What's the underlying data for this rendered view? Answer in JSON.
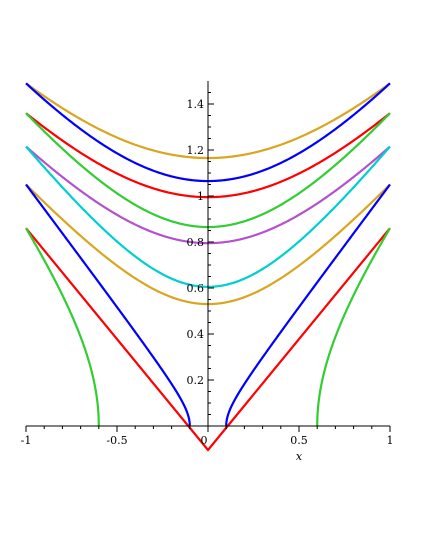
{
  "chart_data": {
    "type": "line",
    "title": "",
    "xlabel": "x",
    "ylabel": "",
    "xlim": [
      -1,
      1
    ],
    "ylim": [
      0,
      1.5
    ],
    "grid": false,
    "x_ticks": [
      {
        "value": -1,
        "label": "-1"
      },
      {
        "value": -0.5,
        "label": "-0.5"
      },
      {
        "value": 0,
        "label": "0"
      },
      {
        "value": 0.5,
        "label": "0.5"
      },
      {
        "value": 1,
        "label": "1"
      }
    ],
    "y_ticks": [
      {
        "value": 0.2,
        "label": "0.2"
      },
      {
        "value": 0.4,
        "label": "0.4"
      },
      {
        "value": 0.6,
        "label": "0.6"
      },
      {
        "value": 0.8,
        "label": "0.8"
      },
      {
        "value": 1,
        "label": "1"
      },
      {
        "value": 1.2,
        "label": "1.2"
      },
      {
        "value": 1.4,
        "label": "1.4"
      }
    ],
    "series": [
      {
        "color": "#DAA520",
        "min_y": 1.165,
        "end_y": 1.49,
        "branches": "full"
      },
      {
        "color": "#0000FF",
        "min_y": 1.065,
        "end_y": 1.49,
        "branches": "full"
      },
      {
        "color": "#FF0000",
        "min_y": 0.995,
        "end_y": 1.36,
        "branches": "full"
      },
      {
        "color": "#32CD32",
        "min_y": 0.865,
        "end_y": 1.36,
        "branches": "full"
      },
      {
        "color": "#B452CD",
        "min_y": 0.795,
        "end_y": 1.215,
        "branches": "full"
      },
      {
        "color": "#00CED1",
        "min_y": 0.605,
        "end_y": 1.215,
        "branches": "full"
      },
      {
        "color": "#DAA520",
        "min_y": 0.53,
        "end_y": 1.05,
        "branches": "full"
      },
      {
        "color": "#0000FF",
        "x0": 0.1,
        "end_y": 1.05,
        "branches": "split"
      },
      {
        "color": "#FF0000",
        "x0": 0.0,
        "end_y": 0.86,
        "branches": "v"
      },
      {
        "color": "#32CD32",
        "x0": 0.6,
        "end_y": 0.86,
        "branches": "split"
      }
    ]
  }
}
